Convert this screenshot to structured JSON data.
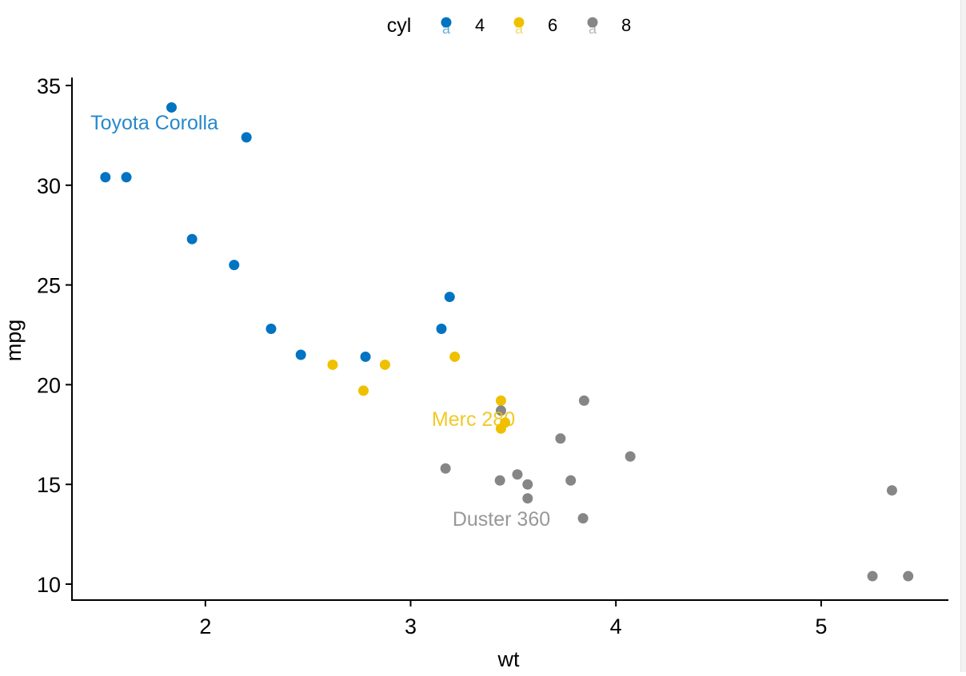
{
  "chart_data": {
    "type": "scatter",
    "xlabel": "wt",
    "ylabel": "mpg",
    "xlim": [
      1.35,
      5.62
    ],
    "ylim": [
      9.2,
      35.4
    ],
    "xticks": [
      2,
      3,
      4,
      5
    ],
    "yticks": [
      10,
      15,
      20,
      25,
      30,
      35
    ],
    "grid": false,
    "legend": {
      "title": "cyl",
      "placement": "top",
      "glyph_label": "a",
      "entries": [
        "4",
        "6",
        "8"
      ]
    },
    "colors": {
      "4": "#0073C2",
      "6": "#EFC000",
      "8": "#868686"
    },
    "series": [
      {
        "name": "4",
        "color": "#0073C2",
        "points": [
          {
            "x": 1.835,
            "y": 33.9
          },
          {
            "x": 2.2,
            "y": 32.4
          },
          {
            "x": 1.513,
            "y": 30.4
          },
          {
            "x": 1.615,
            "y": 30.4
          },
          {
            "x": 1.935,
            "y": 27.3
          },
          {
            "x": 2.14,
            "y": 26.0
          },
          {
            "x": 3.19,
            "y": 24.4
          },
          {
            "x": 2.32,
            "y": 22.8
          },
          {
            "x": 3.15,
            "y": 22.8
          },
          {
            "x": 2.465,
            "y": 21.5
          },
          {
            "x": 2.78,
            "y": 21.4
          }
        ]
      },
      {
        "name": "6",
        "color": "#EFC000",
        "points": [
          {
            "x": 3.215,
            "y": 21.4
          },
          {
            "x": 2.62,
            "y": 21.0
          },
          {
            "x": 2.875,
            "y": 21.0
          },
          {
            "x": 2.77,
            "y": 19.7
          },
          {
            "x": 3.44,
            "y": 19.2
          },
          {
            "x": 3.46,
            "y": 18.1
          },
          {
            "x": 3.44,
            "y": 17.8
          }
        ]
      },
      {
        "name": "8",
        "color": "#868686",
        "points": [
          {
            "x": 3.845,
            "y": 19.2
          },
          {
            "x": 3.44,
            "y": 18.7
          },
          {
            "x": 3.73,
            "y": 17.3
          },
          {
            "x": 4.07,
            "y": 16.4
          },
          {
            "x": 3.17,
            "y": 15.8
          },
          {
            "x": 3.52,
            "y": 15.5
          },
          {
            "x": 3.57,
            "y": 15.0
          },
          {
            "x": 3.435,
            "y": 15.2
          },
          {
            "x": 3.78,
            "y": 15.2
          },
          {
            "x": 5.345,
            "y": 14.7
          },
          {
            "x": 3.57,
            "y": 14.3
          },
          {
            "x": 3.84,
            "y": 13.3
          },
          {
            "x": 5.25,
            "y": 10.4
          },
          {
            "x": 5.424,
            "y": 10.4
          }
        ]
      }
    ],
    "annotations": [
      {
        "text": "Toyota Corolla",
        "x": 1.835,
        "y": 33.9,
        "series": "4"
      },
      {
        "text": "Merc 280",
        "x": 3.44,
        "y": 19.2,
        "series": "6"
      },
      {
        "text": "Duster 360",
        "x": 3.57,
        "y": 14.3,
        "series": "8"
      }
    ]
  }
}
